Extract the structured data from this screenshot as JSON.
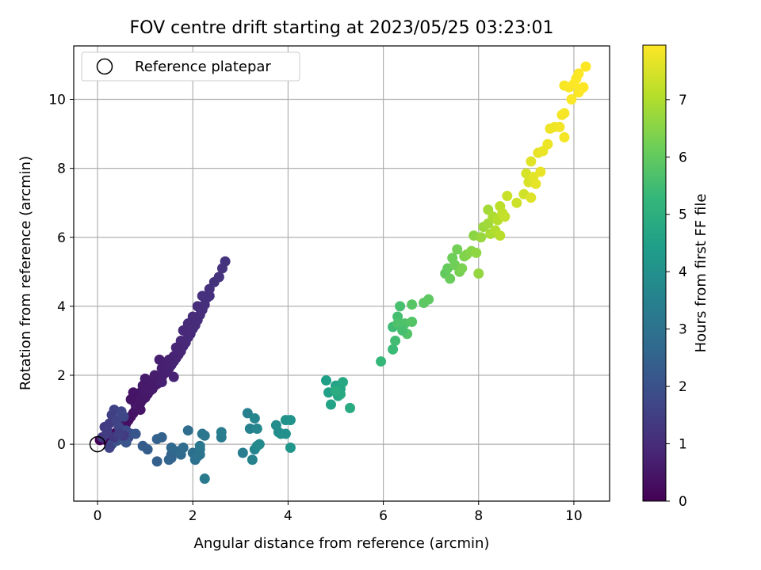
{
  "chart_data": {
    "type": "scatter",
    "title": "FOV centre drift starting at 2023/05/25 03:23:01",
    "xlabel": "Angular distance from reference (arcmin)",
    "ylabel": "Rotation from reference (arcmin)",
    "xlim": [
      -0.5,
      10.75
    ],
    "ylim": [
      -1.65,
      11.55
    ],
    "xticks": [
      0,
      2,
      4,
      6,
      8,
      10
    ],
    "yticks": [
      0,
      2,
      4,
      6,
      8,
      10
    ],
    "grid": true,
    "legend": {
      "placement": "top-left",
      "entries": [
        "Reference platepar"
      ]
    },
    "reference_point": {
      "x": 0,
      "y": 0
    },
    "colorbar": {
      "label": "Hours from first FF file",
      "min": 0,
      "max": 7.95,
      "ticks": [
        0,
        1,
        2,
        3,
        4,
        5,
        6,
        7
      ],
      "colormap": "viridis"
    },
    "viridis_stops": [
      "#440154",
      "#482878",
      "#3e4989",
      "#31688e",
      "#26828e",
      "#1f9e89",
      "#35b779",
      "#6ece58",
      "#b5de2b",
      "#fde725"
    ],
    "points": [
      [
        0.05,
        0.12,
        0.05
      ],
      [
        0.1,
        0.15,
        0.08
      ],
      [
        0.15,
        0.2,
        0.1
      ],
      [
        0.2,
        0.1,
        0.12
      ],
      [
        0.25,
        0.05,
        0.14
      ],
      [
        0.3,
        0.25,
        0.17
      ],
      [
        0.35,
        0.3,
        0.2
      ],
      [
        0.4,
        0.35,
        0.22
      ],
      [
        0.45,
        0.4,
        0.24
      ],
      [
        0.5,
        0.45,
        0.27
      ],
      [
        0.55,
        0.5,
        0.29
      ],
      [
        0.6,
        0.6,
        0.32
      ],
      [
        0.65,
        0.7,
        0.34
      ],
      [
        0.7,
        0.8,
        0.36
      ],
      [
        0.75,
        0.9,
        0.39
      ],
      [
        0.8,
        1.0,
        0.41
      ],
      [
        0.85,
        1.1,
        0.43
      ],
      [
        0.9,
        1.2,
        0.46
      ],
      [
        0.95,
        1.3,
        0.48
      ],
      [
        1.0,
        1.35,
        0.5
      ],
      [
        1.05,
        1.45,
        0.52
      ],
      [
        1.1,
        1.55,
        0.55
      ],
      [
        1.15,
        1.6,
        0.57
      ],
      [
        1.2,
        1.7,
        0.6
      ],
      [
        1.25,
        1.75,
        0.62
      ],
      [
        1.3,
        1.85,
        0.64
      ],
      [
        1.35,
        1.95,
        0.67
      ],
      [
        1.4,
        2.05,
        0.69
      ],
      [
        1.45,
        2.1,
        0.71
      ],
      [
        1.5,
        2.2,
        0.74
      ],
      [
        1.55,
        2.3,
        0.76
      ],
      [
        1.6,
        2.4,
        0.79
      ],
      [
        1.65,
        2.5,
        0.81
      ],
      [
        1.7,
        2.6,
        0.83
      ],
      [
        1.75,
        2.7,
        0.86
      ],
      [
        1.8,
        2.85,
        0.88
      ],
      [
        1.85,
        2.95,
        0.9
      ],
      [
        1.9,
        3.1,
        0.93
      ],
      [
        1.95,
        3.2,
        0.95
      ],
      [
        2.0,
        3.35,
        0.97
      ],
      [
        2.05,
        3.45,
        1.0
      ],
      [
        2.1,
        3.6,
        1.02
      ],
      [
        2.15,
        3.75,
        1.04
      ],
      [
        2.2,
        3.9,
        1.07
      ],
      [
        2.25,
        4.05,
        1.09
      ],
      [
        2.3,
        4.25,
        1.11
      ],
      [
        2.35,
        4.5,
        1.13
      ],
      [
        2.45,
        4.7,
        1.15
      ],
      [
        2.55,
        4.85,
        1.17
      ],
      [
        2.62,
        5.1,
        1.19
      ],
      [
        2.68,
        5.3,
        1.2
      ],
      [
        2.55,
        4.85,
        1.18
      ],
      [
        2.35,
        4.3,
        1.12
      ],
      [
        2.2,
        4.3,
        1.08
      ],
      [
        2.1,
        4.0,
        1.05
      ],
      [
        2.0,
        3.7,
        1.0
      ],
      [
        1.9,
        3.5,
        0.96
      ],
      [
        1.8,
        3.3,
        0.92
      ],
      [
        1.75,
        3.0,
        0.88
      ],
      [
        1.65,
        2.8,
        0.84
      ],
      [
        1.6,
        2.55,
        0.8
      ],
      [
        1.5,
        2.45,
        0.76
      ],
      [
        1.45,
        2.3,
        0.73
      ],
      [
        1.35,
        2.2,
        0.7
      ],
      [
        1.3,
        2.45,
        0.68
      ],
      [
        1.2,
        2.0,
        0.65
      ],
      [
        1.1,
        1.8,
        0.62
      ],
      [
        1.0,
        1.9,
        0.58
      ],
      [
        0.95,
        1.7,
        0.55
      ],
      [
        0.9,
        1.5,
        0.52
      ],
      [
        0.85,
        1.3,
        0.5
      ],
      [
        0.8,
        1.15,
        0.48
      ],
      [
        0.9,
        1.0,
        0.45
      ],
      [
        1.15,
        1.6,
        0.6
      ],
      [
        1.6,
        1.95,
        0.78
      ],
      [
        1.35,
        1.8,
        0.7
      ],
      [
        1.0,
        1.6,
        0.56
      ],
      [
        0.7,
        1.3,
        0.42
      ],
      [
        0.75,
        1.5,
        0.44
      ],
      [
        0.1,
        0.2,
        1.3
      ],
      [
        0.15,
        0.5,
        1.35
      ],
      [
        0.2,
        0.3,
        1.4
      ],
      [
        0.25,
        0.6,
        1.45
      ],
      [
        0.3,
        0.85,
        1.5
      ],
      [
        0.35,
        1.0,
        1.55
      ],
      [
        0.4,
        0.7,
        1.6
      ],
      [
        0.45,
        0.5,
        1.65
      ],
      [
        0.5,
        0.95,
        1.7
      ],
      [
        0.55,
        0.8,
        1.75
      ],
      [
        0.6,
        0.4,
        1.8
      ],
      [
        0.65,
        0.2,
        1.85
      ],
      [
        0.7,
        0.3,
        1.9
      ],
      [
        0.3,
        0.0,
        1.95
      ],
      [
        0.4,
        0.1,
        2.0
      ],
      [
        0.5,
        0.15,
        2.05
      ],
      [
        0.6,
        0.05,
        2.1
      ],
      [
        0.8,
        0.3,
        2.15
      ],
      [
        0.35,
        0.2,
        1.3
      ],
      [
        0.55,
        0.25,
        1.4
      ],
      [
        0.45,
        0.3,
        1.5
      ],
      [
        0.25,
        -0.1,
        1.6
      ],
      [
        0.2,
        0.4,
        1.45
      ],
      [
        0.95,
        -0.05,
        2.3
      ],
      [
        1.05,
        -0.15,
        2.35
      ],
      [
        1.25,
        -0.5,
        2.4
      ],
      [
        1.25,
        0.15,
        2.45
      ],
      [
        1.35,
        0.2,
        2.5
      ],
      [
        1.5,
        -0.45,
        2.55
      ],
      [
        1.55,
        -0.3,
        2.6
      ],
      [
        1.55,
        -0.1,
        2.65
      ],
      [
        1.65,
        -0.2,
        2.7
      ],
      [
        1.75,
        -0.3,
        2.75
      ],
      [
        1.8,
        -0.1,
        2.8
      ],
      [
        1.9,
        0.4,
        2.85
      ],
      [
        2.0,
        -0.25,
        2.9
      ],
      [
        2.05,
        -0.45,
        2.95
      ],
      [
        2.1,
        -0.35,
        3.0
      ],
      [
        2.15,
        -0.15,
        3.05
      ],
      [
        2.2,
        0.3,
        3.1
      ],
      [
        2.25,
        0.25,
        3.15
      ],
      [
        2.15,
        -0.05,
        3.2
      ],
      [
        2.25,
        -1.0,
        3.25
      ],
      [
        2.6,
        0.2,
        3.3
      ],
      [
        2.6,
        0.35,
        3.35
      ],
      [
        3.05,
        -0.25,
        3.4
      ],
      [
        3.15,
        0.9,
        3.45
      ],
      [
        3.2,
        0.45,
        3.5
      ],
      [
        3.25,
        -0.45,
        3.55
      ],
      [
        3.3,
        -0.15,
        3.6
      ],
      [
        3.3,
        0.75,
        3.65
      ],
      [
        3.35,
        0.45,
        3.7
      ],
      [
        3.35,
        -0.05,
        3.75
      ],
      [
        3.4,
        0.0,
        3.8
      ],
      [
        3.75,
        0.55,
        3.85
      ],
      [
        3.8,
        0.35,
        3.9
      ],
      [
        3.85,
        0.3,
        3.95
      ],
      [
        3.95,
        0.3,
        4.0
      ],
      [
        3.95,
        0.7,
        4.05
      ],
      [
        4.05,
        0.7,
        4.1
      ],
      [
        4.05,
        -0.1,
        4.15
      ],
      [
        1.55,
        -0.4,
        2.55
      ],
      [
        2.15,
        -0.3,
        3.05
      ],
      [
        4.8,
        1.85,
        4.45
      ],
      [
        4.85,
        1.5,
        4.5
      ],
      [
        4.9,
        1.15,
        4.55
      ],
      [
        5.0,
        1.7,
        4.6
      ],
      [
        5.05,
        1.4,
        4.65
      ],
      [
        5.1,
        1.6,
        4.7
      ],
      [
        5.15,
        1.8,
        4.75
      ],
      [
        5.1,
        1.45,
        4.8
      ],
      [
        5.3,
        1.05,
        4.85
      ],
      [
        5.0,
        1.55,
        4.9
      ],
      [
        5.95,
        2.4,
        5.3
      ],
      [
        6.2,
        2.75,
        5.4
      ],
      [
        6.2,
        3.4,
        5.45
      ],
      [
        6.25,
        3.0,
        5.5
      ],
      [
        6.3,
        3.7,
        5.55
      ],
      [
        6.35,
        4.0,
        5.6
      ],
      [
        6.4,
        3.35,
        5.65
      ],
      [
        6.45,
        3.5,
        5.7
      ],
      [
        6.5,
        3.2,
        5.75
      ],
      [
        6.6,
        3.55,
        5.8
      ],
      [
        6.6,
        4.05,
        5.85
      ],
      [
        6.85,
        4.1,
        5.9
      ],
      [
        6.95,
        4.2,
        5.95
      ],
      [
        6.3,
        3.5,
        5.7
      ],
      [
        6.4,
        3.3,
        5.6
      ],
      [
        7.3,
        4.95,
        6.0
      ],
      [
        7.35,
        5.1,
        6.05
      ],
      [
        7.4,
        4.8,
        6.1
      ],
      [
        7.45,
        5.4,
        6.15
      ],
      [
        7.5,
        5.2,
        6.2
      ],
      [
        7.55,
        5.65,
        6.25
      ],
      [
        7.6,
        5.0,
        6.3
      ],
      [
        7.65,
        5.1,
        6.35
      ],
      [
        7.7,
        5.45,
        6.4
      ],
      [
        7.75,
        5.5,
        6.45
      ],
      [
        7.85,
        5.6,
        6.5
      ],
      [
        7.9,
        6.05,
        6.55
      ],
      [
        7.95,
        5.55,
        6.6
      ],
      [
        8.0,
        4.95,
        6.65
      ],
      [
        8.05,
        6.0,
        6.7
      ],
      [
        8.1,
        6.3,
        6.75
      ],
      [
        8.2,
        6.4,
        6.8
      ],
      [
        8.2,
        6.8,
        6.85
      ],
      [
        8.25,
        6.1,
        6.9
      ],
      [
        8.3,
        6.6,
        6.95
      ],
      [
        8.35,
        6.2,
        7.0
      ],
      [
        8.4,
        6.5,
        7.05
      ],
      [
        8.45,
        6.05,
        7.1
      ],
      [
        8.45,
        6.9,
        7.15
      ],
      [
        8.5,
        6.7,
        7.2
      ],
      [
        8.55,
        6.6,
        7.25
      ],
      [
        8.6,
        7.2,
        7.3
      ],
      [
        8.8,
        7.0,
        7.35
      ],
      [
        8.95,
        7.25,
        7.4
      ],
      [
        9.0,
        7.85,
        7.45
      ],
      [
        9.05,
        7.6,
        7.5
      ],
      [
        9.1,
        7.15,
        7.55
      ],
      [
        9.1,
        8.2,
        7.6
      ],
      [
        9.15,
        7.75,
        7.62
      ],
      [
        9.2,
        7.55,
        7.65
      ],
      [
        9.25,
        8.45,
        7.68
      ],
      [
        9.3,
        7.9,
        7.7
      ],
      [
        9.35,
        8.5,
        7.72
      ],
      [
        9.45,
        8.7,
        7.74
      ],
      [
        9.5,
        9.15,
        7.76
      ],
      [
        9.6,
        9.2,
        7.78
      ],
      [
        9.7,
        9.2,
        7.8
      ],
      [
        9.75,
        9.55,
        7.82
      ],
      [
        9.8,
        8.9,
        7.84
      ],
      [
        9.8,
        9.6,
        7.86
      ],
      [
        9.8,
        10.4,
        7.88
      ],
      [
        9.9,
        10.35,
        7.9
      ],
      [
        9.95,
        10.0,
        7.91
      ],
      [
        10.0,
        10.45,
        7.92
      ],
      [
        10.05,
        10.6,
        7.93
      ],
      [
        10.1,
        10.75,
        7.94
      ],
      [
        10.15,
        10.3,
        7.95
      ],
      [
        10.2,
        10.35,
        7.95
      ],
      [
        10.25,
        10.95,
        7.95
      ],
      [
        10.1,
        10.2,
        7.94
      ]
    ]
  }
}
